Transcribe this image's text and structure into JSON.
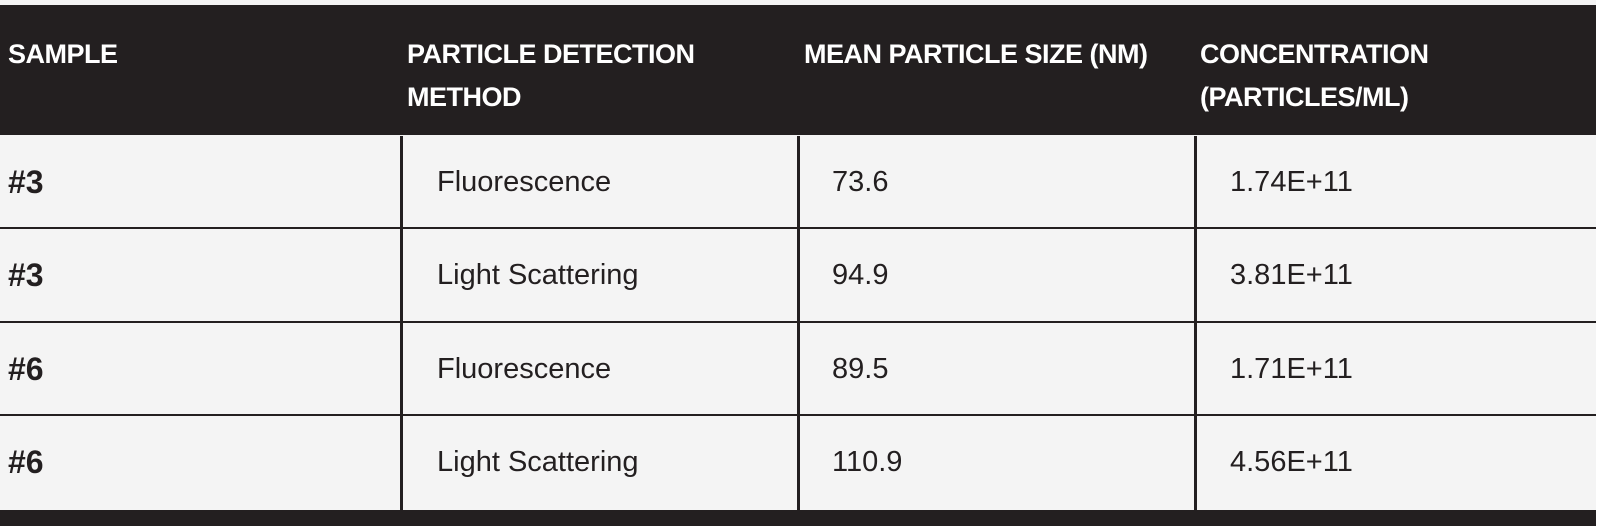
{
  "table": {
    "headers": {
      "sample": "SAMPLE",
      "method_line1": "PARTICLE DETECTION",
      "method_line2": "METHOD",
      "size": "MEAN PARTICLE SIZE (NM)",
      "conc_line1": "CONCENTRATION",
      "conc_line2": "(PARTICLES/ML)"
    },
    "rows": [
      {
        "sample": "#3",
        "method": "Fluorescence",
        "size": "73.6",
        "concentration": "1.74E+11"
      },
      {
        "sample": "#3",
        "method": "Light Scattering",
        "size": "94.9",
        "concentration": "3.81E+11"
      },
      {
        "sample": "#6",
        "method": "Fluorescence",
        "size": "89.5",
        "concentration": "1.71E+11"
      },
      {
        "sample": "#6",
        "method": "Light Scattering",
        "size": "110.9",
        "concentration": "4.56E+11"
      }
    ]
  },
  "colors": {
    "header_bg": "#231f20",
    "row_bg": "#f4f4f4",
    "text": "#231f20"
  }
}
